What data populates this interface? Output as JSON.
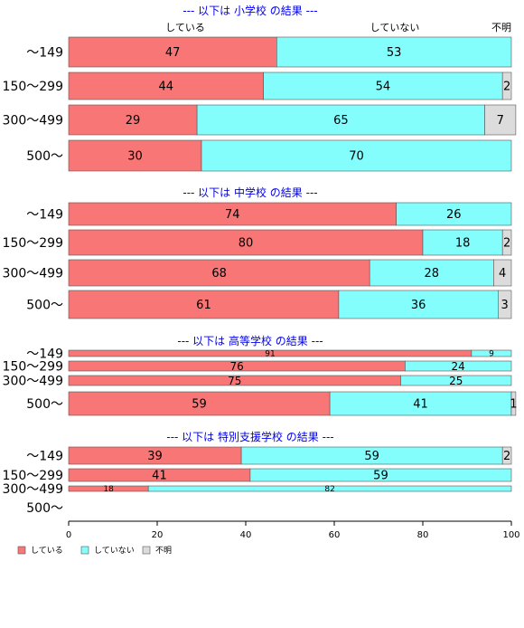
{
  "chart_data": {
    "type": "bar",
    "orientation": "horizontal",
    "stacked": true,
    "xlim": [
      0,
      100
    ],
    "x_ticks": [
      "0",
      "20",
      "40",
      "60",
      "80",
      "100"
    ],
    "column_headers": [
      "している",
      "していない",
      "不明"
    ],
    "legend": {
      "position": "bottom-left",
      "entries": [
        "している",
        "していない",
        "不明"
      ]
    },
    "colors": {
      "している": "#f87676",
      "していない": "#84fdfd",
      "不明": "#dcdcdc"
    },
    "groups": [
      {
        "title": "--- 以下は 小学校 の結果 ---",
        "categories": [
          "〜149",
          "150〜299",
          "300〜499",
          "500〜"
        ],
        "series": [
          {
            "name": "している",
            "values": [
              47,
              44,
              29,
              30
            ]
          },
          {
            "name": "していない",
            "values": [
              53,
              54,
              65,
              70
            ]
          },
          {
            "name": "不明",
            "values": [
              0,
              2,
              7,
              0
            ]
          }
        ]
      },
      {
        "title": "--- 以下は 中学校 の結果 ---",
        "categories": [
          "〜149",
          "150〜299",
          "300〜499",
          "500〜"
        ],
        "series": [
          {
            "name": "している",
            "values": [
              74,
              80,
              68,
              61
            ]
          },
          {
            "name": "していない",
            "values": [
              26,
              18,
              28,
              36
            ]
          },
          {
            "name": "不明",
            "values": [
              0,
              2,
              4,
              3
            ]
          }
        ]
      },
      {
        "title": "--- 以下は 高等学校 の結果 ---",
        "categories": [
          "〜149",
          "150〜299",
          "300〜499",
          "500〜"
        ],
        "series": [
          {
            "name": "している",
            "values": [
              91,
              76,
              75,
              59
            ]
          },
          {
            "name": "していない",
            "values": [
              9,
              24,
              25,
              41
            ]
          },
          {
            "name": "不明",
            "values": [
              0,
              0,
              0,
              1
            ]
          }
        ]
      },
      {
        "title": "--- 以下は 特別支援学校 の結果 ---",
        "categories": [
          "〜149",
          "150〜299",
          "300〜499",
          "500〜"
        ],
        "series": [
          {
            "name": "している",
            "values": [
              39,
              41,
              18,
              0
            ]
          },
          {
            "name": "していない",
            "values": [
              59,
              59,
              82,
              0
            ]
          },
          {
            "name": "不明",
            "values": [
              2,
              0,
              0,
              0
            ]
          }
        ]
      }
    ]
  }
}
